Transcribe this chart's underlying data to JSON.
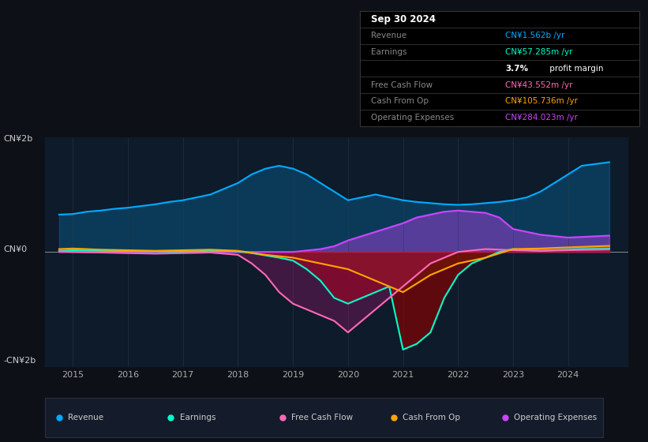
{
  "bg_color": "#0d1117",
  "plot_bg_color": "#0d1b2a",
  "title_box": {
    "date": "Sep 30 2024",
    "rows": [
      {
        "label": "Revenue",
        "value": "CN¥1.562b /yr",
        "value_color": "#00aaff"
      },
      {
        "label": "Earnings",
        "value": "CN¥57.285m /yr",
        "value_color": "#00ffcc"
      },
      {
        "label": "",
        "value": "3.7% profit margin",
        "value_color": "#ffffff"
      },
      {
        "label": "Free Cash Flow",
        "value": "CN¥43.552m /yr",
        "value_color": "#ff69b4"
      },
      {
        "label": "Cash From Op",
        "value": "CN¥105.736m /yr",
        "value_color": "#ffa500"
      },
      {
        "label": "Operating Expenses",
        "value": "CN¥284.023m /yr",
        "value_color": "#cc44ff"
      }
    ]
  },
  "ylim": [
    -2000000000,
    2000000000
  ],
  "xlim_min": 2014.5,
  "xlim_max": 2025.1,
  "xtick_years": [
    2015,
    2016,
    2017,
    2018,
    2019,
    2020,
    2021,
    2022,
    2023,
    2024
  ],
  "legend": [
    {
      "label": "Revenue",
      "color": "#00aaff"
    },
    {
      "label": "Earnings",
      "color": "#00ffcc"
    },
    {
      "label": "Free Cash Flow",
      "color": "#ff69b4"
    },
    {
      "label": "Cash From Op",
      "color": "#ffa500"
    },
    {
      "label": "Operating Expenses",
      "color": "#cc44ff"
    }
  ],
  "revenue_color": "#00aaff",
  "earnings_color": "#00ffcc",
  "fcf_color": "#ff69b4",
  "cashop_color": "#ffa500",
  "opex_color": "#cc44ff",
  "revenue_x": [
    2014.75,
    2015.0,
    2015.25,
    2015.5,
    2015.75,
    2016.0,
    2016.25,
    2016.5,
    2016.75,
    2017.0,
    2017.25,
    2017.5,
    2017.75,
    2018.0,
    2018.25,
    2018.5,
    2018.75,
    2019.0,
    2019.25,
    2019.5,
    2019.75,
    2020.0,
    2020.25,
    2020.5,
    2020.75,
    2021.0,
    2021.25,
    2021.5,
    2021.75,
    2022.0,
    2022.25,
    2022.5,
    2022.75,
    2023.0,
    2023.25,
    2023.5,
    2023.75,
    2024.0,
    2024.25,
    2024.75
  ],
  "revenue_y": [
    650000000,
    660000000,
    700000000,
    720000000,
    750000000,
    770000000,
    800000000,
    830000000,
    870000000,
    900000000,
    950000000,
    1000000000,
    1100000000,
    1200000000,
    1350000000,
    1450000000,
    1500000000,
    1450000000,
    1350000000,
    1200000000,
    1050000000,
    900000000,
    950000000,
    1000000000,
    950000000,
    900000000,
    870000000,
    850000000,
    830000000,
    820000000,
    830000000,
    850000000,
    870000000,
    900000000,
    950000000,
    1050000000,
    1200000000,
    1350000000,
    1500000000,
    1562000000
  ],
  "earnings_x": [
    2014.75,
    2015.0,
    2015.5,
    2016.0,
    2016.5,
    2017.0,
    2017.5,
    2018.0,
    2018.25,
    2018.5,
    2018.75,
    2019.0,
    2019.25,
    2019.5,
    2019.75,
    2020.0,
    2020.25,
    2020.5,
    2020.75,
    2021.0,
    2021.25,
    2021.5,
    2021.75,
    2022.0,
    2022.25,
    2022.5,
    2022.75,
    2023.0,
    2023.25,
    2023.5,
    2023.75,
    2024.0,
    2024.25,
    2024.75
  ],
  "earnings_y": [
    20000000,
    30000000,
    20000000,
    15000000,
    10000000,
    5000000,
    20000000,
    10000000,
    -20000000,
    -60000000,
    -100000000,
    -150000000,
    -300000000,
    -500000000,
    -800000000,
    -900000000,
    -800000000,
    -700000000,
    -600000000,
    -1700000000,
    -1600000000,
    -1400000000,
    -800000000,
    -400000000,
    -200000000,
    -100000000,
    0,
    50000000,
    30000000,
    20000000,
    30000000,
    40000000,
    50000000,
    57285000
  ],
  "fcf_x": [
    2014.75,
    2015.0,
    2015.5,
    2016.0,
    2016.5,
    2017.0,
    2017.5,
    2018.0,
    2018.25,
    2018.5,
    2018.75,
    2019.0,
    2019.25,
    2019.5,
    2019.75,
    2020.0,
    2020.25,
    2020.5,
    2020.75,
    2021.0,
    2021.25,
    2021.5,
    2021.75,
    2022.0,
    2022.5,
    2023.0,
    2023.5,
    2024.0,
    2024.75
  ],
  "fcf_y": [
    10000000,
    0,
    -10000000,
    -20000000,
    -30000000,
    -20000000,
    -10000000,
    -50000000,
    -200000000,
    -400000000,
    -700000000,
    -900000000,
    -1000000000,
    -1100000000,
    -1200000000,
    -1400000000,
    -1200000000,
    -1000000000,
    -800000000,
    -600000000,
    -400000000,
    -200000000,
    -100000000,
    0,
    50000000,
    30000000,
    20000000,
    30000000,
    43552000
  ],
  "cashop_x": [
    2014.75,
    2015.0,
    2015.5,
    2016.0,
    2016.5,
    2017.0,
    2017.5,
    2018.0,
    2018.5,
    2019.0,
    2019.5,
    2020.0,
    2020.25,
    2020.5,
    2020.75,
    2021.0,
    2021.5,
    2022.0,
    2022.5,
    2023.0,
    2023.5,
    2024.0,
    2024.75
  ],
  "cashop_y": [
    50000000,
    60000000,
    40000000,
    30000000,
    20000000,
    30000000,
    40000000,
    20000000,
    -50000000,
    -100000000,
    -200000000,
    -300000000,
    -400000000,
    -500000000,
    -600000000,
    -700000000,
    -400000000,
    -200000000,
    -100000000,
    50000000,
    60000000,
    80000000,
    105736000
  ],
  "opex_x": [
    2014.75,
    2015.0,
    2015.5,
    2016.0,
    2016.5,
    2017.0,
    2017.5,
    2018.0,
    2018.5,
    2019.0,
    2019.5,
    2019.75,
    2020.0,
    2020.5,
    2021.0,
    2021.25,
    2021.5,
    2021.75,
    2022.0,
    2022.25,
    2022.5,
    2022.75,
    2023.0,
    2023.5,
    2024.0,
    2024.75
  ],
  "opex_y": [
    0,
    0,
    0,
    0,
    0,
    0,
    0,
    0,
    0,
    0,
    50000000,
    100000000,
    200000000,
    350000000,
    500000000,
    600000000,
    650000000,
    700000000,
    720000000,
    700000000,
    680000000,
    600000000,
    400000000,
    300000000,
    250000000,
    284023000
  ]
}
